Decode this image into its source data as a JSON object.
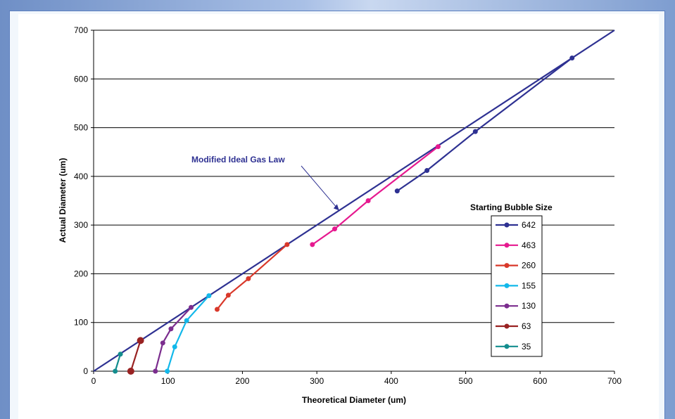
{
  "chart_data": {
    "type": "line",
    "title": "",
    "xlabel": "Theoretical Diameter (um)",
    "ylabel": "Actual Diameter (um)",
    "xlim": [
      0,
      700
    ],
    "ylim": [
      0,
      700
    ],
    "xticks": [
      "0",
      "100",
      "200",
      "300",
      "400",
      "500",
      "600",
      "700"
    ],
    "yticks": [
      "0",
      "100",
      "200",
      "300",
      "400",
      "500",
      "600",
      "700"
    ],
    "grid": "horizontal",
    "legend": {
      "title": "Starting Bubble Size",
      "position": "right"
    },
    "reference_line": {
      "label": "Modified Ideal Gas Law",
      "points": [
        [
          0,
          0
        ],
        [
          700,
          700
        ]
      ],
      "color": "#2e3192"
    },
    "annotation": {
      "text": "Modified Ideal Gas Law",
      "points_to": [
        330,
        330
      ]
    },
    "series": [
      {
        "name": "642",
        "color": "#2e3192",
        "points": [
          [
            408,
            370
          ],
          [
            448,
            412
          ],
          [
            513,
            492
          ],
          [
            643,
            643
          ]
        ]
      },
      {
        "name": "463",
        "color": "#e6198f",
        "points": [
          [
            294,
            260
          ],
          [
            324,
            292
          ],
          [
            369,
            350
          ],
          [
            463,
            461
          ]
        ]
      },
      {
        "name": "260",
        "color": "#d9382a",
        "points": [
          [
            166,
            127
          ],
          [
            181,
            156
          ],
          [
            208,
            190
          ],
          [
            260,
            260
          ]
        ]
      },
      {
        "name": "155",
        "color": "#12b8ea",
        "points": [
          [
            99,
            0
          ],
          [
            109,
            50
          ],
          [
            125,
            104
          ],
          [
            155,
            155
          ]
        ]
      },
      {
        "name": "130",
        "color": "#7b2d8e",
        "points": [
          [
            83,
            0
          ],
          [
            93,
            58
          ],
          [
            104,
            87
          ],
          [
            131,
            131
          ]
        ]
      },
      {
        "name": "63",
        "color": "#992222",
        "points": [
          [
            50,
            0
          ],
          [
            63,
            63
          ]
        ]
      },
      {
        "name": "35",
        "color": "#138d8e",
        "points": [
          [
            29,
            0
          ],
          [
            36,
            35
          ]
        ]
      }
    ]
  }
}
